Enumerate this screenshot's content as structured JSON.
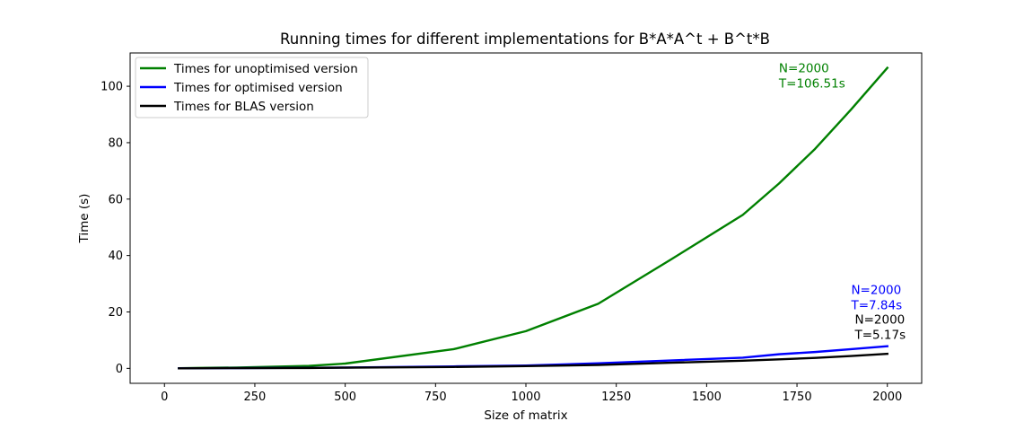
{
  "chart_data": {
    "type": "line",
    "title": "Running times for different implementations for B*A*A^t + B^t*B",
    "xlabel": "Size of matrix",
    "ylabel": "Time (s)",
    "xlim": [
      -95,
      2095
    ],
    "ylim": [
      -5.3,
      111.8
    ],
    "xticks": [
      0,
      250,
      500,
      750,
      1000,
      1250,
      1500,
      1750,
      2000
    ],
    "yticks": [
      0,
      20,
      40,
      60,
      80,
      100
    ],
    "grid": false,
    "legend_position": "upper-left",
    "series": [
      {
        "name": "Times for unoptimised version",
        "color": "#008000",
        "x": [
          40,
          100,
          200,
          400,
          500,
          800,
          1000,
          1200,
          1400,
          1600,
          1700,
          1800,
          1900,
          2000
        ],
        "y": [
          0.05,
          0.15,
          0.3,
          0.9,
          1.7,
          6.8,
          13.2,
          22.9,
          38.5,
          54.4,
          65.5,
          77.8,
          91.8,
          106.51
        ]
      },
      {
        "name": "Times for optimised version",
        "color": "#0000ff",
        "x": [
          40,
          100,
          200,
          400,
          500,
          800,
          1000,
          1200,
          1400,
          1600,
          1700,
          1800,
          1900,
          2000
        ],
        "y": [
          0.0,
          0.05,
          0.1,
          0.2,
          0.3,
          0.7,
          1.0,
          1.8,
          2.8,
          3.8,
          5.0,
          5.8,
          6.8,
          7.84
        ]
      },
      {
        "name": "Times for BLAS version",
        "color": "#000000",
        "x": [
          40,
          100,
          200,
          400,
          500,
          800,
          1000,
          1200,
          1400,
          1600,
          1700,
          1800,
          1900,
          2000
        ],
        "y": [
          0.0,
          0.05,
          0.1,
          0.15,
          0.25,
          0.5,
          0.8,
          1.2,
          2.0,
          2.7,
          3.2,
          3.7,
          4.4,
          5.17
        ]
      }
    ],
    "annotations": [
      {
        "lines": [
          "N=2000",
          "T=106.51s"
        ],
        "color": "#008000",
        "x": 1700,
        "y": 106.51
      },
      {
        "lines": [
          "N=2000",
          "T=7.84s"
        ],
        "color": "#0000ff",
        "x": 1900,
        "y": 28
      },
      {
        "lines": [
          "N=2000",
          "T=5.17s"
        ],
        "color": "#000000",
        "x": 1910,
        "y": 17.5
      }
    ]
  }
}
